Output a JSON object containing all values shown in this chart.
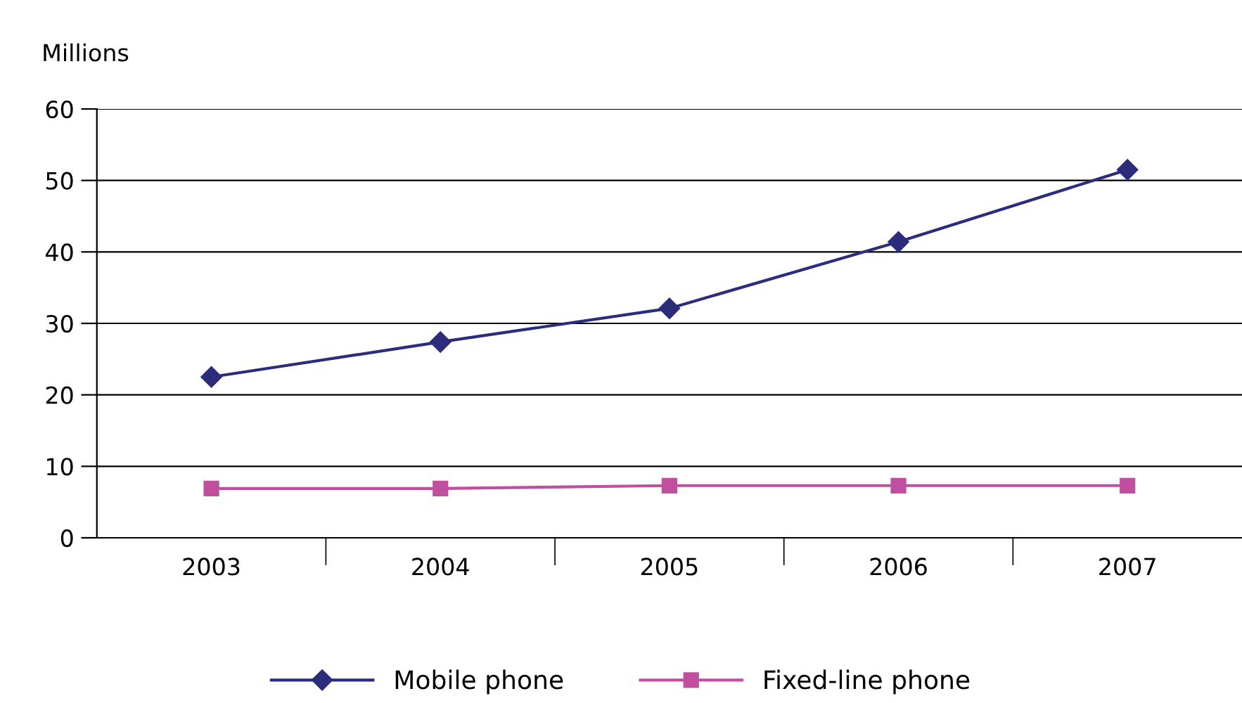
{
  "chart_data": {
    "type": "line",
    "ylabel": "Millions",
    "categories": [
      "2003",
      "2004",
      "2005",
      "2006",
      "2007"
    ],
    "series": [
      {
        "name": "Mobile phone",
        "color": "#2b2c7c",
        "marker": "diamond",
        "values": [
          22.5,
          27.4,
          32.1,
          41.4,
          51.5
        ]
      },
      {
        "name": "Fixed-line phone",
        "color": "#c0509f",
        "marker": "square",
        "values": [
          6.9,
          6.9,
          7.3,
          7.3,
          7.3
        ]
      }
    ],
    "ylim": [
      0,
      60
    ],
    "yticks": [
      0,
      10,
      20,
      30,
      40,
      50,
      60
    ],
    "grid": "y",
    "legend": "bottom",
    "line_style": "solid"
  }
}
